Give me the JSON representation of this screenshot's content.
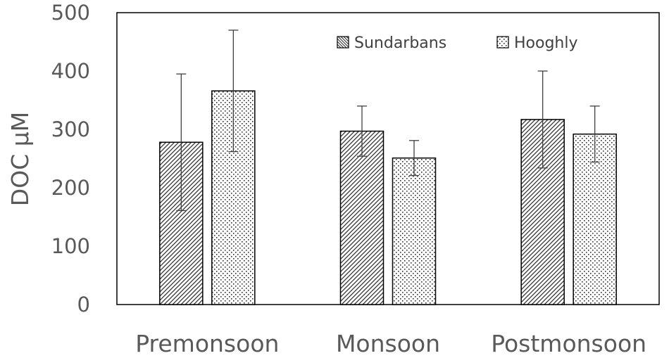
{
  "chart_data": {
    "type": "bar",
    "title": "",
    "xlabel": "",
    "ylabel": "DOC µM",
    "ylim": [
      0,
      500
    ],
    "yticks": [
      0,
      100,
      200,
      300,
      400,
      500
    ],
    "categories": [
      "Premonsoon",
      "Monsoon",
      "Postmonsoon"
    ],
    "legend_position": "top-right",
    "grid": false,
    "series": [
      {
        "name": "Sundarbans",
        "pattern": "diagonal-hatch",
        "values": [
          278,
          297,
          317
        ],
        "error": [
          117,
          43,
          83
        ]
      },
      {
        "name": "Hooghly",
        "pattern": "dots",
        "values": [
          366,
          251,
          292
        ],
        "error": [
          104,
          30,
          48
        ]
      }
    ]
  }
}
